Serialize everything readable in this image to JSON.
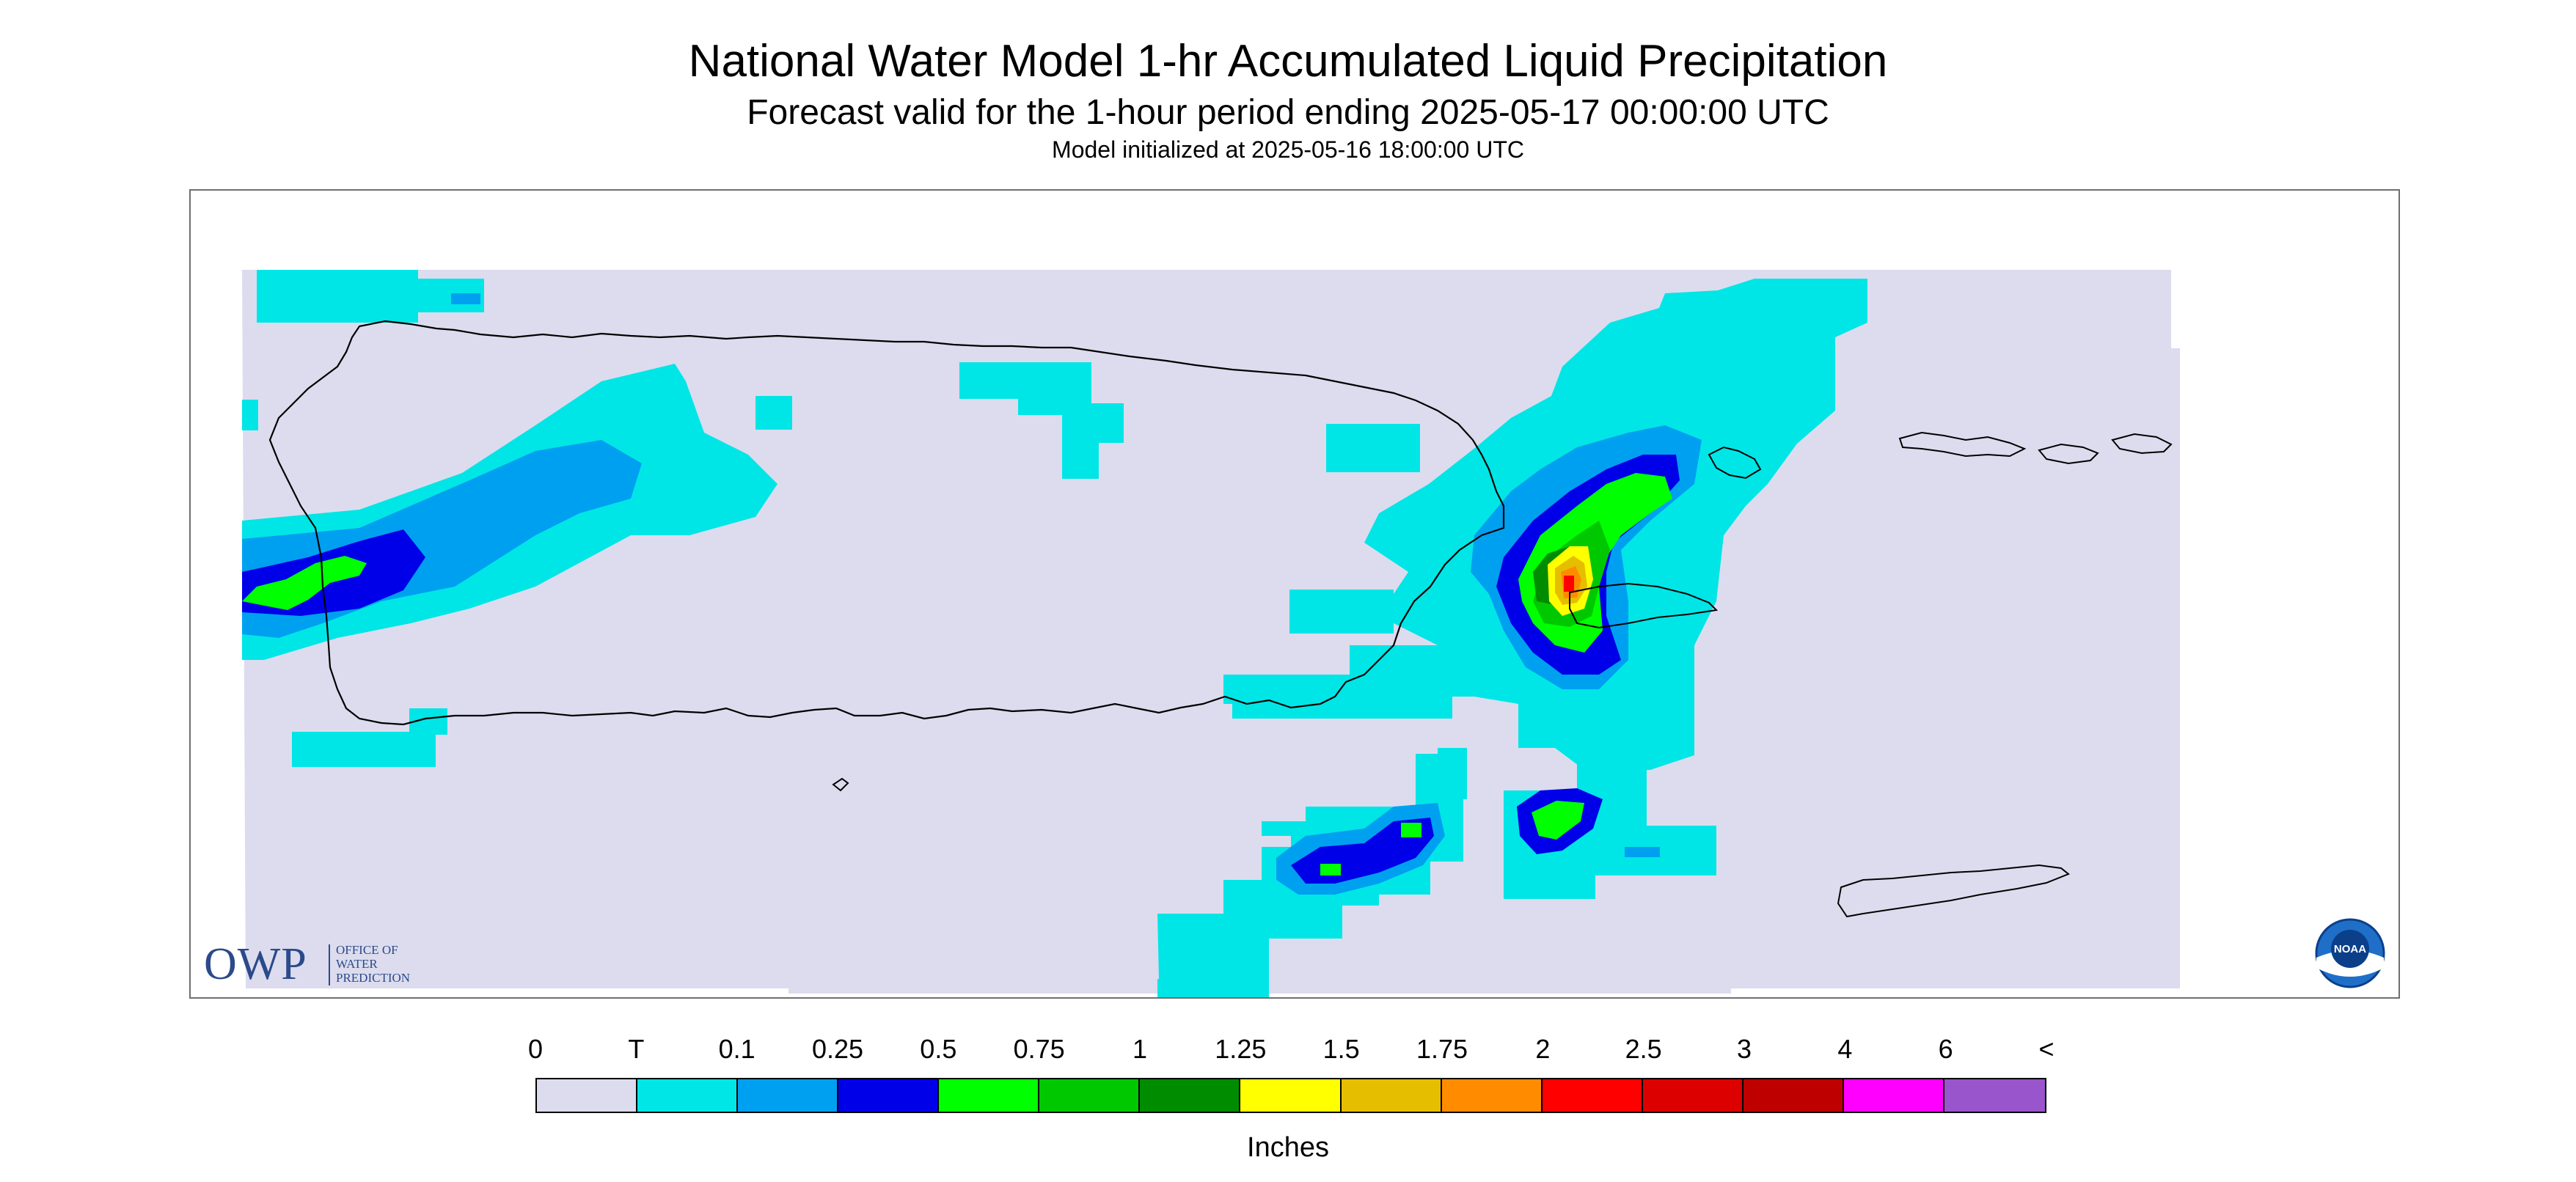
{
  "header": {
    "title": "National Water Model 1-hr Accumulated Liquid Precipitation",
    "subtitle": "Forecast valid for the 1-hour period ending 2025-05-17 00:00:00 UTC",
    "init_line": "Model initialized at 2025-05-16 18:00:00 UTC"
  },
  "logos": {
    "owp_letters": "OWP",
    "owp_text": "OFFICE OF\nWATER\nPREDICTION",
    "noaa_text": "NOAA"
  },
  "legend": {
    "ticks": [
      "0",
      "T",
      "0.1",
      "0.25",
      "0.5",
      "0.75",
      "1",
      "1.25",
      "1.5",
      "1.75",
      "2",
      "2.5",
      "3",
      "4",
      "6",
      "<"
    ],
    "colors": [
      "#dcdcee",
      "#00e6e6",
      "#00a0f0",
      "#0000e8",
      "#00ff00",
      "#00c800",
      "#008c00",
      "#ffff00",
      "#e6be00",
      "#ff8c00",
      "#ff0000",
      "#dc0000",
      "#be0000",
      "#ff00ff",
      "#9955cc"
    ],
    "unit": "Inches"
  },
  "map": {
    "background_color": "#dcdcee",
    "outline_color": "#000000",
    "region": "Puerto Rico and U.S. Virgin Islands"
  }
}
